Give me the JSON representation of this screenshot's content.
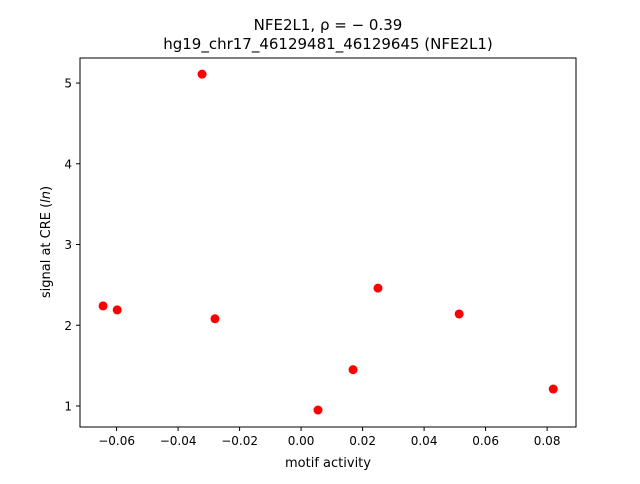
{
  "chart_data": {
    "type": "scatter",
    "title_line1": "NFE2L1, ρ = − 0.39",
    "title_line2": "hg19_chr17_46129481_46129645 (NFE2L1)",
    "xlabel": "motif activity",
    "ylabel": "signal at CRE (ln)",
    "ylabel_prefix": "signal at CRE (",
    "ylabel_italic": "ln",
    "ylabel_suffix": ")",
    "xlim": [
      -0.0719,
      0.0894
    ],
    "ylim": [
      0.74,
      5.31
    ],
    "xticks": [
      -0.06,
      -0.04,
      -0.02,
      0.0,
      0.02,
      0.04,
      0.06,
      0.08
    ],
    "xtick_labels": [
      "−0.06",
      "−0.04",
      "−0.02",
      "0.00",
      "0.02",
      "0.04",
      "0.06",
      "0.08"
    ],
    "yticks": [
      1,
      2,
      3,
      4,
      5
    ],
    "ytick_labels": [
      "1",
      "2",
      "3",
      "4",
      "5"
    ],
    "grid": false,
    "marker_color": "#ff0000",
    "points": [
      {
        "x": -0.0644,
        "y": 2.24
      },
      {
        "x": -0.0598,
        "y": 2.19
      },
      {
        "x": -0.0322,
        "y": 5.11
      },
      {
        "x": -0.028,
        "y": 2.08
      },
      {
        "x": 0.0055,
        "y": 0.95
      },
      {
        "x": 0.0169,
        "y": 1.45
      },
      {
        "x": 0.025,
        "y": 2.46
      },
      {
        "x": 0.0514,
        "y": 2.14
      },
      {
        "x": 0.082,
        "y": 1.21
      }
    ]
  }
}
